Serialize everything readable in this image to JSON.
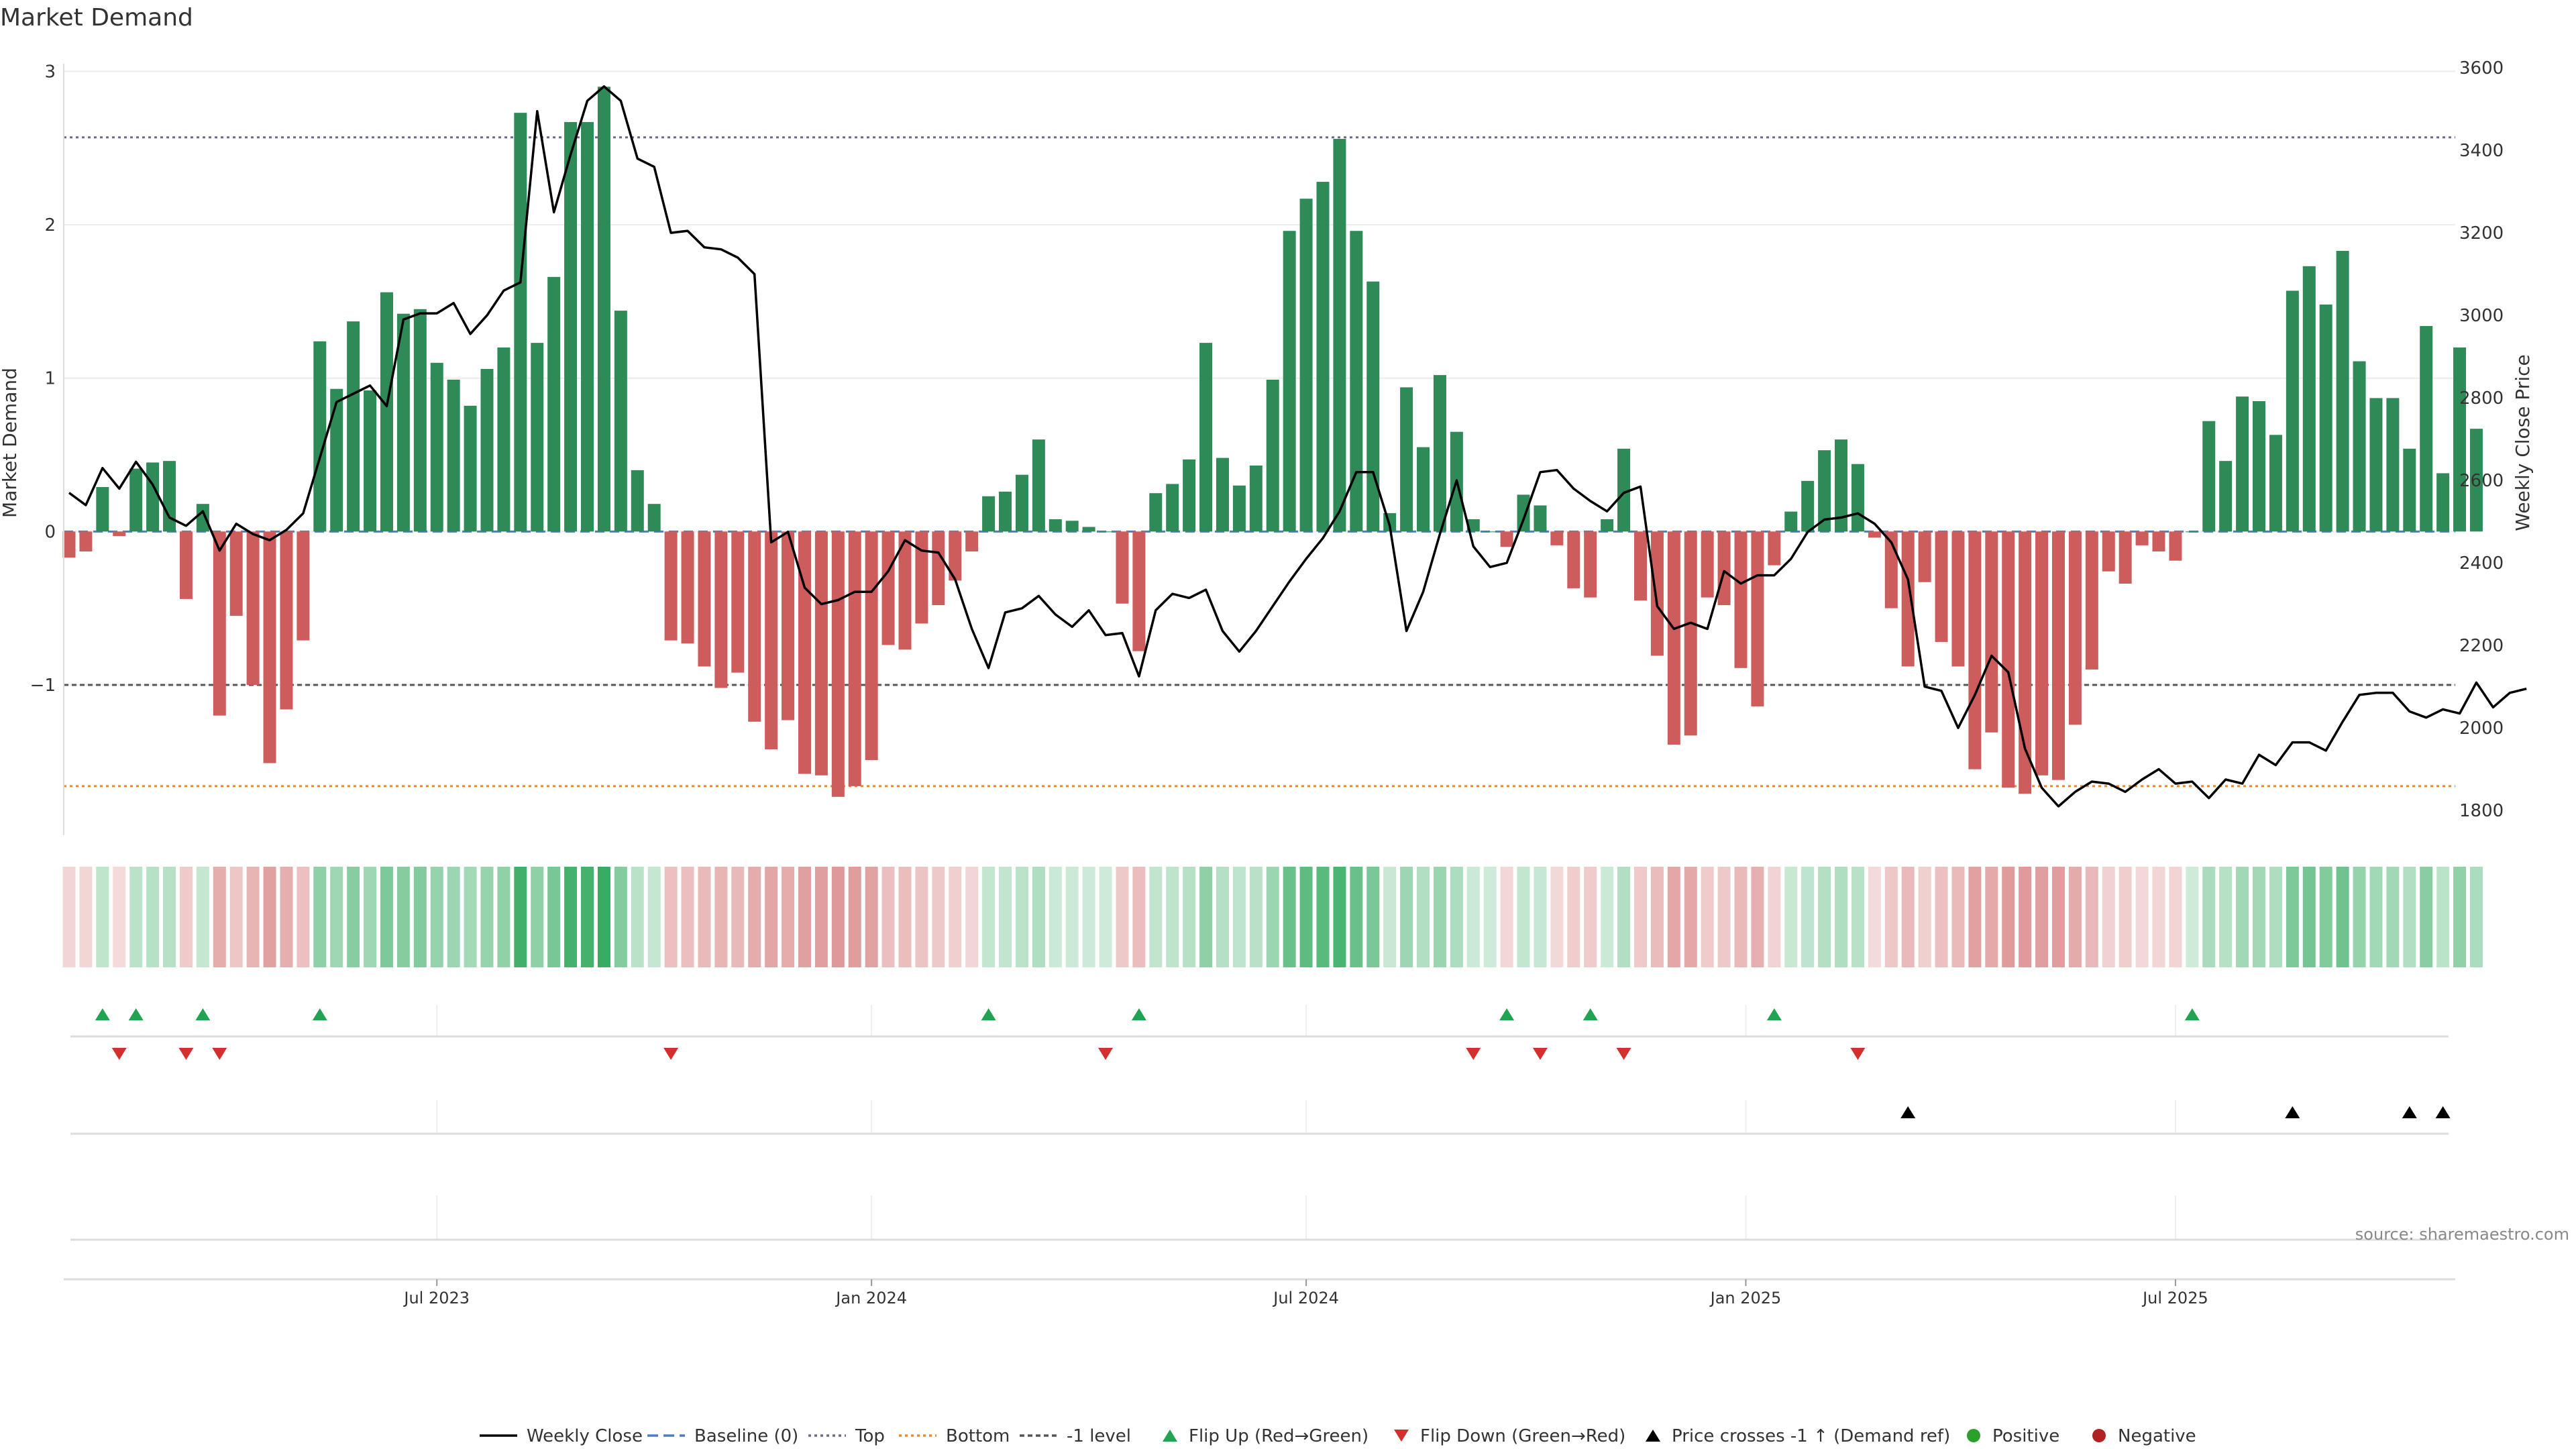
{
  "chart_data": {
    "type": "bar",
    "title": "Market Demand",
    "ylabel": "Market Demand",
    "y2label": "Weekly Close Price",
    "ylim": [
      -1.98,
      3.05
    ],
    "y2lim": [
      1740,
      3610
    ],
    "yticks": [
      -1,
      0,
      1,
      2,
      3
    ],
    "y2ticks": [
      1800,
      2000,
      2200,
      2400,
      2600,
      2800,
      3000,
      3200,
      3400,
      3600
    ],
    "x_labels": [
      {
        "label": "Jul 2023",
        "index": 22
      },
      {
        "label": "Jan 2024",
        "index": 48
      },
      {
        "label": "Jul 2024",
        "index": 74
      },
      {
        "label": "Jan 2025",
        "index": 100.3
      },
      {
        "label": "Jul 2025",
        "index": 126
      }
    ],
    "reference_lines": {
      "top": 2.57,
      "bottom": -1.66,
      "minus_one": -1.0,
      "baseline": 0
    },
    "demand": [
      -0.17,
      -0.13,
      0.29,
      -0.03,
      0.41,
      0.45,
      0.46,
      -0.44,
      0.18,
      -1.2,
      -0.55,
      -1.0,
      -1.51,
      -1.16,
      -0.71,
      1.24,
      0.93,
      1.37,
      0.92,
      1.56,
      1.42,
      1.45,
      1.1,
      0.99,
      0.82,
      1.06,
      1.2,
      2.73,
      1.23,
      1.66,
      2.67,
      2.67,
      2.9,
      1.44,
      0.4,
      0.18,
      -0.71,
      -0.73,
      -0.88,
      -1.02,
      -0.92,
      -1.24,
      -1.42,
      -1.23,
      -1.58,
      -1.59,
      -1.73,
      -1.66,
      -1.49,
      -0.74,
      -0.77,
      -0.6,
      -0.48,
      -0.32,
      -0.13,
      0.23,
      0.26,
      0.37,
      0.6,
      0.08,
      0.07,
      0.03,
      0.0,
      -0.47,
      -0.78,
      0.25,
      0.31,
      0.47,
      1.23,
      0.48,
      0.3,
      0.43,
      0.99,
      1.96,
      2.17,
      2.28,
      2.56,
      1.96,
      1.63,
      0.12,
      0.94,
      0.55,
      1.02,
      0.65,
      0.08,
      0.0,
      -0.1,
      0.24,
      0.17,
      -0.09,
      -0.37,
      -0.43,
      0.08,
      0.54,
      -0.45,
      -0.81,
      -1.39,
      -1.33,
      -0.43,
      -0.48,
      -0.89,
      -1.14,
      -0.22,
      0.13,
      0.33,
      0.53,
      0.6,
      0.44,
      -0.04,
      -0.5,
      -0.88,
      -0.33,
      -0.72,
      -0.88,
      -1.55,
      -1.31,
      -1.67,
      -1.71,
      -1.59,
      -1.62,
      -1.26,
      -0.9,
      -0.26,
      -0.34,
      -0.09,
      -0.13,
      -0.19,
      0.0,
      0.72,
      0.46,
      0.88,
      0.85,
      0.63,
      1.57,
      1.73,
      1.48,
      1.83,
      1.11,
      0.87,
      0.87,
      0.54,
      1.34,
      0.38,
      1.2,
      0.67
    ],
    "weekly_close": [
      2570,
      2540,
      2630,
      2580,
      2645,
      2590,
      2510,
      2490,
      2525,
      2430,
      2495,
      2470,
      2455,
      2480,
      2520,
      2655,
      2790,
      2810,
      2830,
      2780,
      2990,
      3005,
      3005,
      3030,
      2955,
      3000,
      3060,
      3080,
      3495,
      3250,
      3390,
      3520,
      3555,
      3520,
      3380,
      3360,
      3200,
      3205,
      3165,
      3160,
      3140,
      3100,
      2450,
      2475,
      2340,
      2300,
      2310,
      2330,
      2330,
      2380,
      2455,
      2430,
      2425,
      2360,
      2240,
      2145,
      2280,
      2290,
      2320,
      2275,
      2245,
      2285,
      2225,
      2230,
      2125,
      2285,
      2325,
      2315,
      2335,
      2235,
      2185,
      2235,
      2295,
      2355,
      2410,
      2460,
      2525,
      2620,
      2620,
      2490,
      2235,
      2330,
      2470,
      2600,
      2440,
      2390,
      2400,
      2505,
      2620,
      2625,
      2580,
      2550,
      2525,
      2570,
      2585,
      2295,
      2240,
      2255,
      2240,
      2380,
      2350,
      2370,
      2370,
      2410,
      2475,
      2505,
      2510,
      2520,
      2495,
      2450,
      2360,
      2100,
      2090,
      2000,
      2080,
      2175,
      2135,
      1950,
      1855,
      1810,
      1845,
      1870,
      1865,
      1845,
      1875,
      1900,
      1865,
      1870,
      1830,
      1875,
      1865,
      1935,
      1910,
      1965,
      1965,
      1945,
      2015,
      2080,
      2085,
      2085,
      2040,
      2025,
      2045,
      2035,
      2110,
      2050,
      2085,
      2095
    ],
    "flip_up_indices": [
      2,
      4,
      8,
      15,
      55,
      64,
      86,
      91,
      102,
      127
    ],
    "flip_down_indices": [
      3,
      7,
      9,
      36,
      62,
      84,
      88,
      93,
      107
    ],
    "price_cross_indices": [
      110,
      133,
      140,
      142
    ],
    "legend": [
      "Weekly Close",
      "Baseline (0)",
      "Top",
      "Bottom",
      "-1 level",
      "Flip Up (Red→Green)",
      "Flip Down (Green→Red)",
      "Price crosses -1 ↑ (Demand ref)",
      "Positive",
      "Negative"
    ]
  },
  "source_text": "source: sharemaestro.com",
  "colors": {
    "positive": "#2e8b57",
    "negative": "#cd5c5c",
    "price_line": "#000000",
    "baseline": "#4a7fc1",
    "top_line": "#6b6b8f",
    "bottom_line": "#e8892e",
    "minus_one_line": "#555555",
    "flip_up": "#22a352",
    "flip_down": "#d32f2f",
    "cross_marker": "#000000",
    "legend_positive": "#2ca02c",
    "legend_negative": "#b22222"
  }
}
